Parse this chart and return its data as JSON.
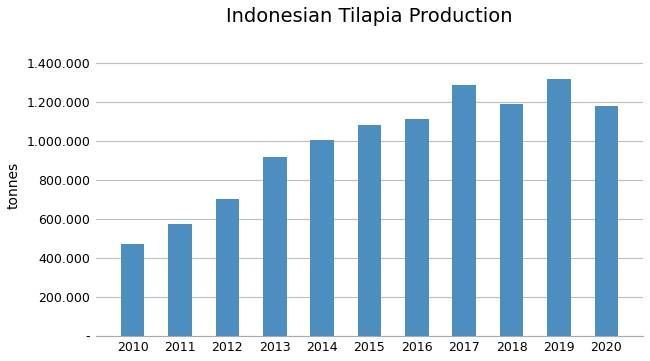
{
  "title": "Indonesian Tilapia Production",
  "ylabel": "tonnes",
  "years": [
    2010,
    2011,
    2012,
    2013,
    2014,
    2015,
    2016,
    2017,
    2018,
    2019,
    2020
  ],
  "values": [
    470000,
    575000,
    700000,
    915000,
    1005000,
    1080000,
    1115000,
    1285000,
    1190000,
    1320000,
    1180000
  ],
  "bar_color": "#4d8ec0",
  "ylim": [
    0,
    1540000
  ],
  "yticks": [
    0,
    200000,
    400000,
    600000,
    800000,
    1000000,
    1200000,
    1400000
  ],
  "ytick_labels": [
    "-",
    "200.000",
    "400.000",
    "600.000",
    "800.000",
    "1.000.000",
    "1.200.000",
    "1.400.000"
  ],
  "background_color": "#ffffff",
  "grid_color": "#bfbfbf",
  "title_fontsize": 14,
  "axis_fontsize": 10,
  "tick_fontsize": 9,
  "bar_width": 0.5
}
